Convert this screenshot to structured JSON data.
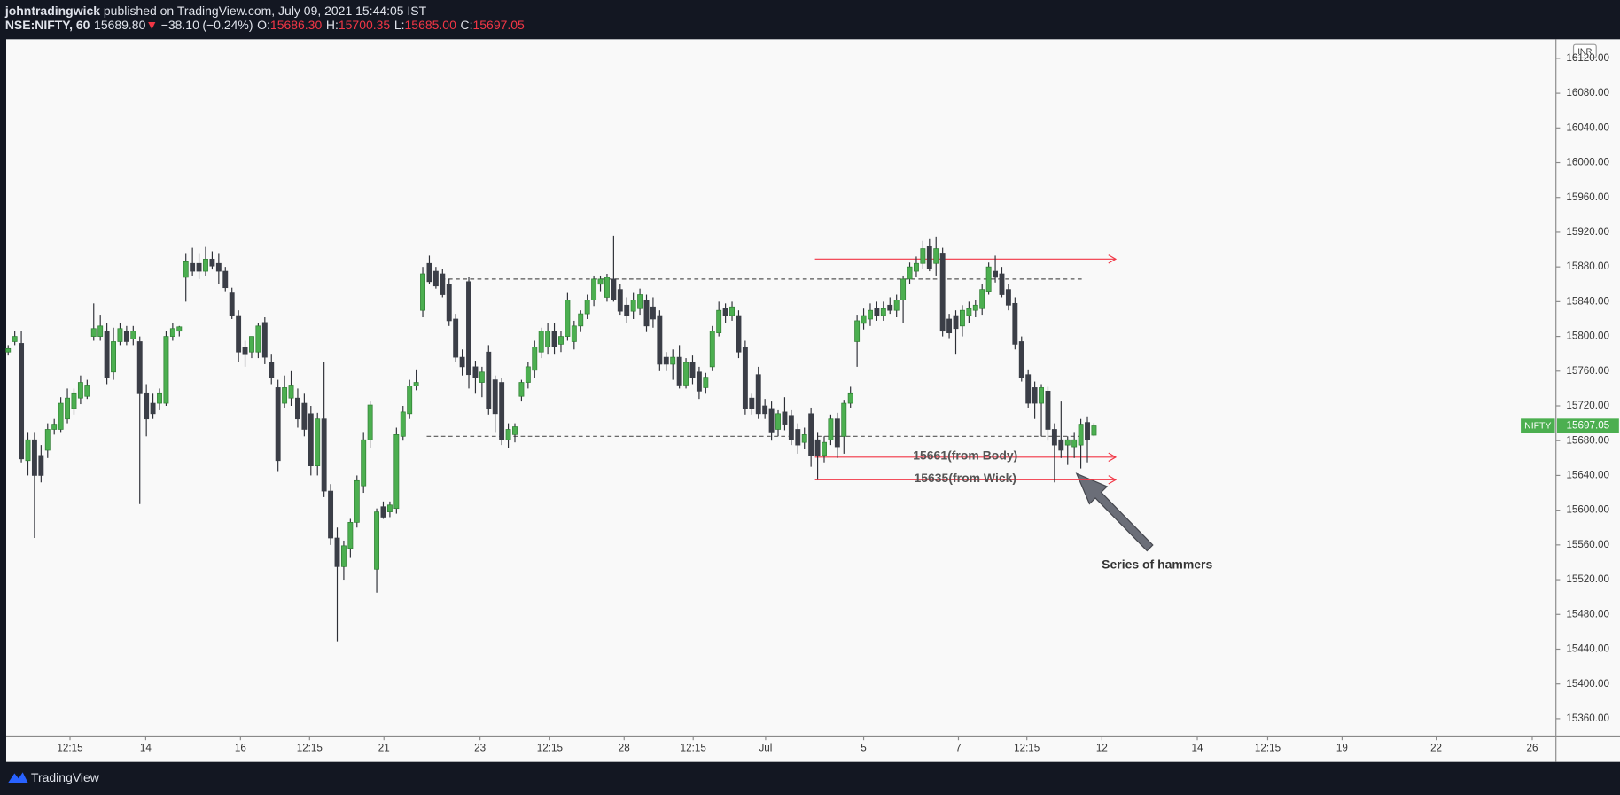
{
  "header": {
    "author": "johntradingwick",
    "published": " published on TradingView.com, July 09, 2021 15:44:05 IST",
    "symbol": "NSE:NIFTY, 60",
    "price": {
      "value": 15689.8,
      "label": "15689.80"
    },
    "direction": "▼",
    "change": {
      "value": -38.1,
      "label": "−38.10"
    },
    "change_pct": {
      "value": -0.24,
      "label": "(−0.24%)"
    },
    "ohlc": [
      {
        "key": "O:",
        "value": 15686.3,
        "label": "15686.30"
      },
      {
        "key": "H:",
        "value": 15700.35,
        "label": "15700.35"
      },
      {
        "key": "L:",
        "value": 15685.0,
        "label": "15685.00"
      },
      {
        "key": "C:",
        "value": 15697.05,
        "label": "15697.05"
      }
    ]
  },
  "footer": {
    "brand": "TradingView"
  },
  "chart_data": {
    "type": "candlestick",
    "currency": "INR",
    "symbol_tag": "NIFTY",
    "last_price": {
      "value": 15697.05,
      "label": "15697.05"
    },
    "up_color": "#4caf50",
    "down_color": "#3b3e47",
    "wick_color": "#2d2f36",
    "ylim": [
      15340,
      16142
    ],
    "yticks": [
      {
        "value": 15360,
        "label": "15360.00"
      },
      {
        "value": 15400,
        "label": "15400.00"
      },
      {
        "value": 15440,
        "label": "15440.00"
      },
      {
        "value": 15480,
        "label": "15480.00"
      },
      {
        "value": 15520,
        "label": "15520.00"
      },
      {
        "value": 15560,
        "label": "15560.00"
      },
      {
        "value": 15600,
        "label": "15600.00"
      },
      {
        "value": 15640,
        "label": "15640.00"
      },
      {
        "value": 15680,
        "label": "15680.00"
      },
      {
        "value": 15720,
        "label": "15720.00"
      },
      {
        "value": 15760,
        "label": "15760.00"
      },
      {
        "value": 15800,
        "label": "15800.00"
      },
      {
        "value": 15840,
        "label": "15840.00"
      },
      {
        "value": 15880,
        "label": "15880.00"
      },
      {
        "value": 15920,
        "label": "15920.00"
      },
      {
        "value": 15960,
        "label": "15960.00"
      },
      {
        "value": 16000,
        "label": "16000.00"
      },
      {
        "value": 16040,
        "label": "16040.00"
      },
      {
        "value": 16080,
        "label": "16080.00"
      },
      {
        "value": 16120,
        "label": "16120.00"
      }
    ],
    "xlim": [
      -0.3,
      235.2
    ],
    "xticks": [
      {
        "value": 9.4,
        "label": "12:15"
      },
      {
        "value": 20.9,
        "label": "14"
      },
      {
        "value": 35.3,
        "label": "16"
      },
      {
        "value": 45.8,
        "label": "12:15"
      },
      {
        "value": 57.1,
        "label": "21"
      },
      {
        "value": 71.7,
        "label": "23"
      },
      {
        "value": 82.3,
        "label": "12:15"
      },
      {
        "value": 93.6,
        "label": "28"
      },
      {
        "value": 104.1,
        "label": "12:15"
      },
      {
        "value": 115.1,
        "label": "Jul"
      },
      {
        "value": 130.0,
        "label": "5"
      },
      {
        "value": 144.4,
        "label": "7"
      },
      {
        "value": 154.8,
        "label": "12:15"
      },
      {
        "value": 166.2,
        "label": "12"
      },
      {
        "value": 180.7,
        "label": "14"
      },
      {
        "value": 191.4,
        "label": "12:15"
      },
      {
        "value": 202.7,
        "label": "19"
      },
      {
        "value": 217.0,
        "label": "22"
      },
      {
        "value": 231.6,
        "label": "26"
      }
    ],
    "levels": [
      {
        "value": 15866,
        "from": 63.6,
        "to": 163.3,
        "color": "#555"
      },
      {
        "value": 15685,
        "from": 63.6,
        "to": 163.3,
        "color": "#555"
      }
    ],
    "arrows": [
      {
        "value": 15889,
        "from": 122.6,
        "to": 168.3,
        "color": "#f23645"
      },
      {
        "value": 15661,
        "from": 122.6,
        "to": 168.3,
        "color": "#f23645",
        "label": "15661(from Body)"
      },
      {
        "value": 15635,
        "from": 122.6,
        "to": 168.3,
        "color": "#f23645",
        "label": "15635(from Wick)"
      }
    ],
    "note": "Series of hammers",
    "candles": [
      [
        15782,
        15790,
        15778,
        15786
      ],
      [
        15794,
        15806,
        15790,
        15800
      ],
      [
        15792,
        15806,
        15655,
        15659
      ],
      [
        15657,
        15690,
        15640,
        15681
      ],
      [
        15681,
        15690,
        15568,
        15640
      ],
      [
        15663,
        15675,
        15632,
        15640
      ],
      [
        15669,
        15700,
        15660,
        15693
      ],
      [
        15693,
        15705,
        15687,
        15699
      ],
      [
        15693,
        15730,
        15690,
        15723
      ],
      [
        15705,
        15740,
        15700,
        15729
      ],
      [
        15717,
        15740,
        15710,
        15735
      ],
      [
        15729,
        15755,
        15722,
        15747
      ],
      [
        15731,
        15750,
        15728,
        15744
      ],
      [
        15800,
        15838,
        15795,
        15809
      ],
      [
        15800,
        15825,
        15795,
        15812
      ],
      [
        15806,
        15815,
        15745,
        15753
      ],
      [
        15759,
        15810,
        15750,
        15794
      ],
      [
        15794,
        15815,
        15790,
        15809
      ],
      [
        15806,
        15812,
        15790,
        15794
      ],
      [
        15797,
        15812,
        15790,
        15806
      ],
      [
        15794,
        15800,
        15607,
        15735
      ],
      [
        15735,
        15745,
        15685,
        15705
      ],
      [
        15723,
        15735,
        15705,
        15711
      ],
      [
        15723,
        15740,
        15715,
        15735
      ],
      [
        15723,
        15806,
        15720,
        15800
      ],
      [
        15800,
        15815,
        15795,
        15809
      ],
      [
        15806,
        15812,
        15800,
        15811
      ],
      [
        15868,
        15895,
        15840,
        15886
      ],
      [
        15884,
        15902,
        15870,
        15875
      ],
      [
        15884,
        15895,
        15866,
        15875
      ],
      [
        15875,
        15903,
        15870,
        15889
      ],
      [
        15889,
        15898,
        15877,
        15881
      ],
      [
        15884,
        15895,
        15860,
        15875
      ],
      [
        15875,
        15880,
        15852,
        15856
      ],
      [
        15850,
        15856,
        15820,
        15824
      ],
      [
        15824,
        15830,
        15770,
        15782
      ],
      [
        15788,
        15795,
        15765,
        15780
      ],
      [
        15782,
        15800,
        15775,
        15800
      ],
      [
        15782,
        15815,
        15775,
        15812
      ],
      [
        15816,
        15822,
        15768,
        15776
      ],
      [
        15770,
        15780,
        15745,
        15753
      ],
      [
        15741,
        15750,
        15645,
        15657
      ],
      [
        15723,
        15755,
        15718,
        15741
      ],
      [
        15729,
        15760,
        15720,
        15744
      ],
      [
        15729,
        15740,
        15695,
        15705
      ],
      [
        15723,
        15735,
        15685,
        15693
      ],
      [
        15711,
        15720,
        15640,
        15651
      ],
      [
        15651,
        15712,
        15640,
        15705
      ],
      [
        15705,
        15770,
        15615,
        15622
      ],
      [
        15622,
        15630,
        15560,
        15568
      ],
      [
        15568,
        15580,
        15449,
        15535
      ],
      [
        15535,
        15565,
        15520,
        15559
      ],
      [
        15556,
        15590,
        15545,
        15586
      ],
      [
        15586,
        15640,
        15580,
        15634
      ],
      [
        15628,
        15690,
        15620,
        15681
      ],
      [
        15681,
        15725,
        15672,
        15721
      ],
      [
        15532,
        15602,
        15505,
        15598
      ],
      [
        15604,
        15610,
        15590,
        15592
      ],
      [
        15598,
        15610,
        15592,
        15606
      ],
      [
        15602,
        15695,
        15596,
        15687
      ],
      [
        15685,
        15720,
        15680,
        15713
      ],
      [
        15711,
        15750,
        15705,
        15743
      ],
      [
        15743,
        15762,
        15738,
        15747
      ],
      [
        15830,
        15880,
        15822,
        15872
      ],
      [
        15884,
        15893,
        15860,
        15863
      ],
      [
        15875,
        15880,
        15855,
        15858
      ],
      [
        15872,
        15878,
        15845,
        15848
      ],
      [
        15860,
        15866,
        15812,
        15818
      ],
      [
        15820,
        15826,
        15770,
        15776
      ],
      [
        15776,
        15785,
        15755,
        15765
      ],
      [
        15863,
        15868,
        15740,
        15756
      ],
      [
        15765,
        15772,
        15735,
        15753
      ],
      [
        15747,
        15765,
        15730,
        15759
      ],
      [
        15782,
        15790,
        15710,
        15717
      ],
      [
        15750,
        15755,
        15690,
        15711
      ],
      [
        15747,
        15752,
        15675,
        15681
      ],
      [
        15681,
        15700,
        15672,
        15693
      ],
      [
        15687,
        15700,
        15678,
        15696
      ],
      [
        15731,
        15750,
        15725,
        15747
      ],
      [
        15747,
        15770,
        15740,
        15765
      ],
      [
        15761,
        15795,
        15752,
        15788
      ],
      [
        15782,
        15810,
        15775,
        15806
      ],
      [
        15788,
        15815,
        15780,
        15806
      ],
      [
        15806,
        15815,
        15780,
        15788
      ],
      [
        15791,
        15806,
        15782,
        15800
      ],
      [
        15800,
        15850,
        15795,
        15842
      ],
      [
        15794,
        15818,
        15785,
        15812
      ],
      [
        15812,
        15830,
        15805,
        15826
      ],
      [
        15826,
        15848,
        15820,
        15842
      ],
      [
        15842,
        15870,
        15835,
        15866
      ],
      [
        15860,
        15870,
        15852,
        15866
      ],
      [
        15845,
        15872,
        15840,
        15868
      ],
      [
        15866,
        15916,
        15840,
        15842
      ],
      [
        15854,
        15860,
        15825,
        15829
      ],
      [
        15836,
        15845,
        15815,
        15824
      ],
      [
        15829,
        15850,
        15820,
        15842
      ],
      [
        15832,
        15855,
        15825,
        15848
      ],
      [
        15842,
        15848,
        15805,
        15812
      ],
      [
        15834,
        15845,
        15810,
        15820
      ],
      [
        15824,
        15830,
        15760,
        15768
      ],
      [
        15776,
        15782,
        15760,
        15768
      ],
      [
        15768,
        15785,
        15750,
        15776
      ],
      [
        15776,
        15790,
        15740,
        15744
      ],
      [
        15744,
        15775,
        15740,
        15770
      ],
      [
        15770,
        15778,
        15745,
        15753
      ],
      [
        15759,
        15765,
        15728,
        15737
      ],
      [
        15741,
        15758,
        15735,
        15753
      ],
      [
        15765,
        15812,
        15760,
        15806
      ],
      [
        15804,
        15840,
        15800,
        15830
      ],
      [
        15832,
        15838,
        15815,
        15824
      ],
      [
        15824,
        15840,
        15818,
        15834
      ],
      [
        15824,
        15830,
        15775,
        15782
      ],
      [
        15788,
        15795,
        15710,
        15717
      ],
      [
        15729,
        15735,
        15710,
        15717
      ],
      [
        15756,
        15765,
        15705,
        15711
      ],
      [
        15720,
        15728,
        15705,
        15711
      ],
      [
        15717,
        15725,
        15680,
        15690
      ],
      [
        15693,
        15715,
        15685,
        15711
      ],
      [
        15713,
        15730,
        15692,
        15699
      ],
      [
        15709,
        15715,
        15675,
        15681
      ],
      [
        15693,
        15700,
        15665,
        15675
      ],
      [
        15678,
        15695,
        15670,
        15687
      ],
      [
        15711,
        15718,
        15650,
        15663
      ],
      [
        15681,
        15690,
        15635,
        15663
      ],
      [
        15663,
        15685,
        15655,
        15678
      ],
      [
        15681,
        15710,
        15675,
        15705
      ],
      [
        15705,
        15712,
        15660,
        15673
      ],
      [
        15685,
        15727,
        15665,
        15723
      ],
      [
        15723,
        15742,
        15718,
        15735
      ],
      [
        15794,
        15825,
        15765,
        15818
      ],
      [
        15815,
        15832,
        15808,
        15824
      ],
      [
        15820,
        15838,
        15812,
        15830
      ],
      [
        15832,
        15840,
        15818,
        15824
      ],
      [
        15824,
        15840,
        15818,
        15832
      ],
      [
        15836,
        15845,
        15826,
        15830
      ],
      [
        15830,
        15848,
        15822,
        15842
      ],
      [
        15842,
        15870,
        15815,
        15866
      ],
      [
        15866,
        15885,
        15860,
        15880
      ],
      [
        15875,
        15892,
        15868,
        15884
      ],
      [
        15884,
        15910,
        15878,
        15901
      ],
      [
        15904,
        15912,
        15875,
        15878
      ],
      [
        15884,
        15915,
        15870,
        15901
      ],
      [
        15895,
        15902,
        15800,
        15806
      ],
      [
        15820,
        15826,
        15798,
        15804
      ],
      [
        15824,
        15830,
        15780,
        15809
      ],
      [
        15812,
        15836,
        15800,
        15830
      ],
      [
        15824,
        15840,
        15815,
        15832
      ],
      [
        15830,
        15842,
        15822,
        15836
      ],
      [
        15832,
        15860,
        15825,
        15854
      ],
      [
        15852,
        15885,
        15848,
        15880
      ],
      [
        15875,
        15893,
        15862,
        15868
      ],
      [
        15872,
        15880,
        15845,
        15848
      ],
      [
        15854,
        15860,
        15830,
        15836
      ],
      [
        15838,
        15845,
        15785,
        15791
      ],
      [
        15794,
        15800,
        15748,
        15753
      ],
      [
        15756,
        15762,
        15718,
        15723
      ],
      [
        15741,
        15748,
        15705,
        15723
      ],
      [
        15723,
        15745,
        15685,
        15741
      ],
      [
        15737,
        15742,
        15680,
        15693
      ],
      [
        15693,
        15700,
        15632,
        15675
      ],
      [
        15681,
        15725,
        15660,
        15669
      ],
      [
        15675,
        15685,
        15652,
        15681
      ],
      [
        15673,
        15690,
        15660,
        15681
      ],
      [
        15675,
        15705,
        15648,
        15699
      ],
      [
        15701,
        15708,
        15655,
        15681
      ],
      [
        15686.3,
        15700.35,
        15685.0,
        15697.05
      ]
    ]
  }
}
